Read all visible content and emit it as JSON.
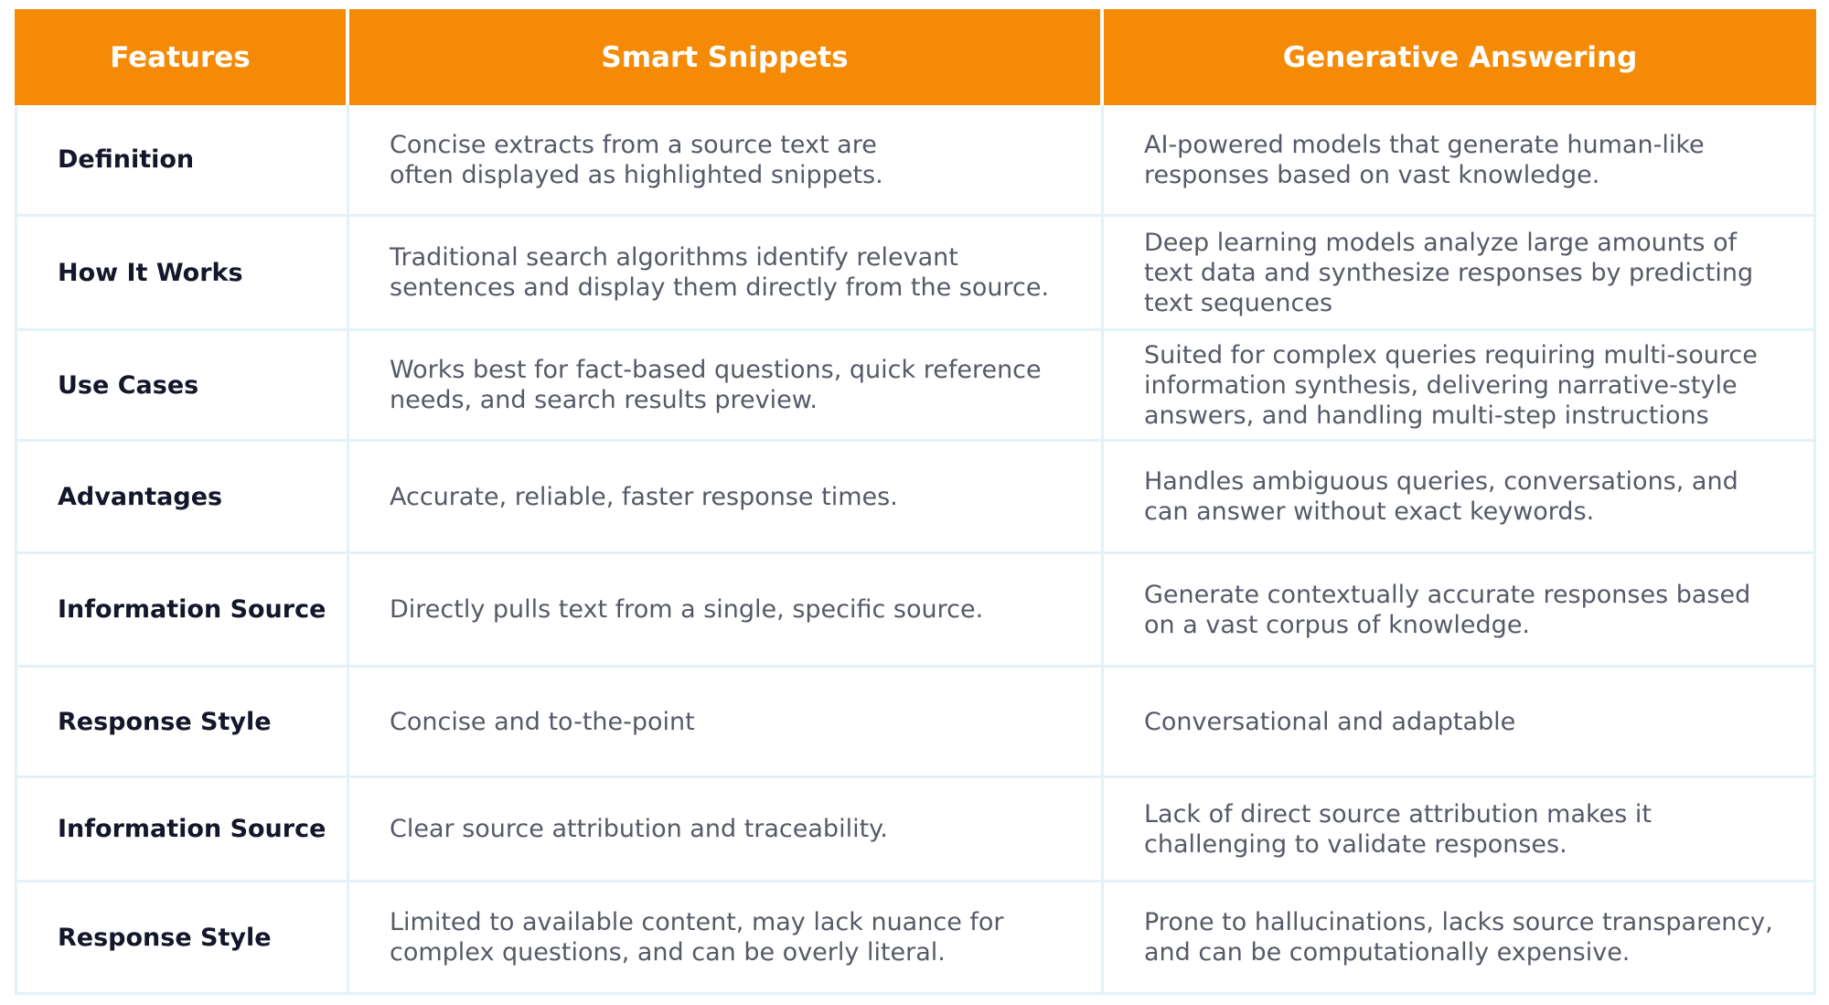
{
  "table": {
    "headers": [
      "Features",
      "Smart Snippets",
      "Generative Answering"
    ],
    "rows": [
      {
        "feature": "Definition",
        "smart": [
          "Concise extracts from a source text are",
          "often displayed as highlighted snippets."
        ],
        "generative": [
          "AI-powered models that generate human-like",
          "responses based on vast knowledge."
        ]
      },
      {
        "feature": "How It Works",
        "smart": [
          "Traditional search algorithms identify relevant",
          "sentences and display them directly from the source."
        ],
        "generative": [
          "Deep learning models analyze large amounts of",
          "text data and synthesize responses by predicting",
          "text sequences"
        ]
      },
      {
        "feature": "Use Cases",
        "smart": [
          "Works best for fact-based questions, quick reference",
          "needs, and search results preview."
        ],
        "generative": [
          "Suited for complex queries requiring multi-source",
          "information synthesis, delivering narrative-style",
          "answers, and handling  multi-step instructions"
        ]
      },
      {
        "feature": "Advantages",
        "smart": [
          "Accurate, reliable, faster response times."
        ],
        "generative": [
          "Handles ambiguous queries, conversations, and",
          "can answer without exact keywords."
        ]
      },
      {
        "feature": "Information Source",
        "smart": [
          "Directly pulls text from a single, specific source."
        ],
        "generative": [
          "Generate contextually accurate responses based",
          "on a vast corpus of knowledge."
        ]
      },
      {
        "feature": "Response Style",
        "smart": [
          "Concise and to-the-point"
        ],
        "generative": [
          "Conversational and adaptable"
        ]
      },
      {
        "feature": "Information Source",
        "smart": [
          "Clear source attribution and traceability."
        ],
        "generative": [
          "Lack of direct source attribution makes it",
          "challenging to validate responses."
        ]
      },
      {
        "feature": "Response Style",
        "smart": [
          "Limited to available content, may lack nuance for",
          "complex questions, and can be overly literal."
        ],
        "generative": [
          "Prone to hallucinations, lacks source transparency,",
          "and can be computationally expensive."
        ]
      }
    ]
  },
  "colors": {
    "header_bg": "#f58a07",
    "header_text": "#ffffff",
    "grid_line": "#e3f1f8",
    "feature_text": "#14172a",
    "body_text": "#555a66"
  }
}
